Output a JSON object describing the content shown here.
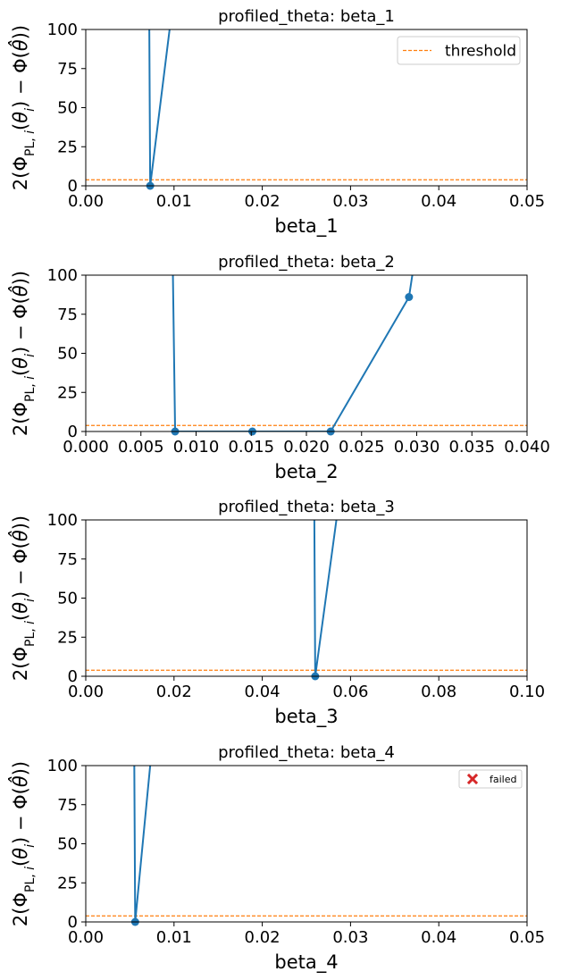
{
  "chart_data": [
    {
      "type": "line",
      "title": "profiled_theta: beta_1",
      "xlabel": "beta_1",
      "ylabel": "2(Φ_PL,i(θ_i) − Φ(θ̂))",
      "xlim": [
        0,
        0.05
      ],
      "ylim": [
        0,
        100
      ],
      "xticks": [
        "0.00",
        "0.01",
        "0.02",
        "0.03",
        "0.04",
        "0.05"
      ],
      "yticks": [
        "0",
        "25",
        "50",
        "75",
        "100"
      ],
      "threshold": 3.84,
      "series": [
        {
          "x": [
            0.0072,
            0.0073,
            0.0095
          ],
          "y": [
            100,
            0.0,
            100
          ],
          "markers": [
            [
              0.0073,
              0.0
            ]
          ]
        }
      ],
      "legend": {
        "position": "top-right",
        "entries": [
          {
            "label": "threshold",
            "style": "dashed",
            "color": "#ff7f0e"
          }
        ]
      }
    },
    {
      "type": "line",
      "title": "profiled_theta: beta_2",
      "xlabel": "beta_2",
      "ylabel": "2(Φ_PL,i(θ_i) − Φ(θ̂))",
      "xlim": [
        0,
        0.04
      ],
      "ylim": [
        0,
        100
      ],
      "xticks": [
        "0.000",
        "0.005",
        "0.010",
        "0.015",
        "0.020",
        "0.025",
        "0.030",
        "0.035",
        "0.040"
      ],
      "yticks": [
        "0",
        "25",
        "50",
        "75",
        "100"
      ],
      "threshold": 3.84,
      "series": [
        {
          "x": [
            0.0079,
            0.0081,
            0.0151,
            0.0222,
            0.0293,
            0.0296
          ],
          "y": [
            100,
            0.0,
            0.0,
            0.0,
            86,
            100
          ],
          "markers": [
            [
              0.0081,
              0.0
            ],
            [
              0.0151,
              0.0
            ],
            [
              0.0222,
              0.0
            ],
            [
              0.0293,
              86
            ]
          ]
        }
      ]
    },
    {
      "type": "line",
      "title": "profiled_theta: beta_3",
      "xlabel": "beta_3",
      "ylabel": "2(Φ_PL,i(θ_i) − Φ(θ̂))",
      "xlim": [
        0,
        0.1
      ],
      "ylim": [
        0,
        100
      ],
      "xticks": [
        "0.00",
        "0.02",
        "0.04",
        "0.06",
        "0.08",
        "0.10"
      ],
      "yticks": [
        "0",
        "25",
        "50",
        "75",
        "100"
      ],
      "threshold": 3.84,
      "series": [
        {
          "x": [
            0.0518,
            0.052,
            0.0568
          ],
          "y": [
            100,
            0.0,
            100
          ],
          "markers": [
            [
              0.052,
              0.0
            ]
          ]
        }
      ]
    },
    {
      "type": "line",
      "title": "profiled_theta: beta_4",
      "xlabel": "beta_4",
      "ylabel": "2(Φ_PL,i(θ_i) − Φ(θ̂))",
      "xlim": [
        0,
        0.05
      ],
      "ylim": [
        0,
        100
      ],
      "xticks": [
        "0.00",
        "0.01",
        "0.02",
        "0.03",
        "0.04",
        "0.05"
      ],
      "yticks": [
        "0",
        "25",
        "50",
        "75",
        "100"
      ],
      "threshold": 3.84,
      "series": [
        {
          "x": [
            0.0055,
            0.0056,
            0.0073
          ],
          "y": [
            100,
            0.0,
            100
          ],
          "markers": [
            [
              0.0056,
              0.0
            ]
          ]
        }
      ],
      "legend": {
        "position": "top-right",
        "entries": [
          {
            "label": "failed",
            "style": "x-marker",
            "color": "#d62728"
          }
        ]
      }
    }
  ],
  "colors": {
    "line": "#1f77b4",
    "threshold": "#ff7f0e",
    "failed": "#d62728"
  }
}
